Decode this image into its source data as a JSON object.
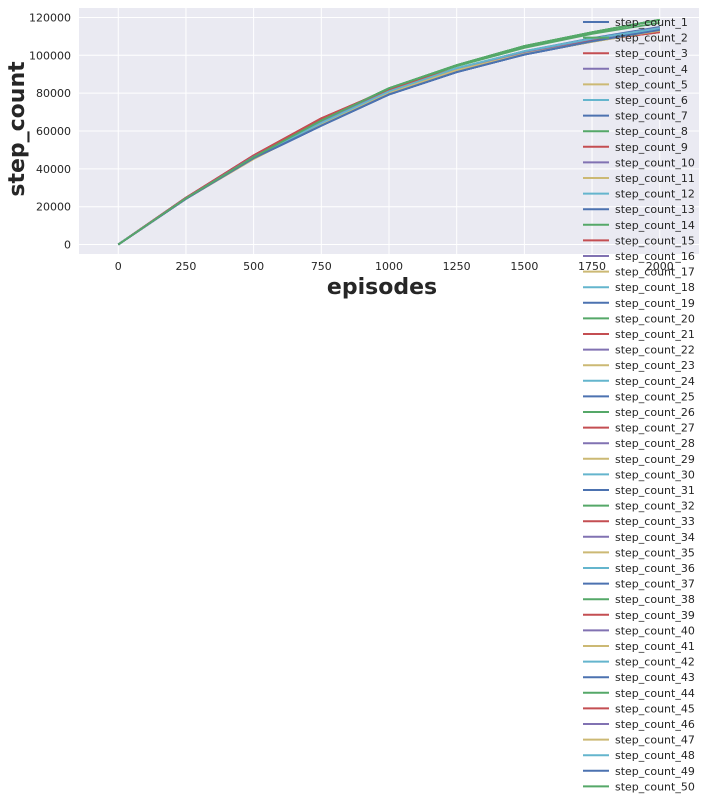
{
  "chart_data": {
    "type": "line",
    "xlabel": "episodes",
    "ylabel": "step_count",
    "xlim": [
      -145,
      2145
    ],
    "ylim": [
      -5000,
      125000
    ],
    "xticks": [
      0,
      250,
      500,
      750,
      1000,
      1250,
      1500,
      1750,
      2000
    ],
    "yticks": [
      0,
      20000,
      40000,
      60000,
      80000,
      100000,
      120000
    ],
    "grid": true,
    "legend_position": "right, overflowing below the axes",
    "background_color": "#eaeaf2",
    "grid_color": "#ffffff",
    "palette": [
      "#4c72b0",
      "#55a868",
      "#c44e52",
      "#8172b2",
      "#ccb974",
      "#64b5cd"
    ],
    "x": [
      0,
      250,
      500,
      750,
      1000,
      1250,
      1500,
      1750,
      2000
    ],
    "series": [
      {
        "name": "step_count_1",
        "color": "#4c72b0",
        "values": [
          0,
          24800,
          46500,
          64300,
          80800,
          93000,
          102200,
          109100,
          115000
        ]
      },
      {
        "name": "step_count_2",
        "color": "#55a868",
        "values": [
          0,
          24700,
          46800,
          65400,
          82300,
          94300,
          103900,
          111300,
          117200
        ]
      },
      {
        "name": "step_count_3",
        "color": "#c44e52",
        "values": [
          0,
          24600,
          47000,
          66100,
          82200,
          93100,
          101900,
          108100,
          112800
        ]
      },
      {
        "name": "step_count_4",
        "color": "#8172b2",
        "values": [
          0,
          24500,
          46300,
          64600,
          80900,
          92600,
          101600,
          108600,
          114400
        ]
      },
      {
        "name": "step_count_5",
        "color": "#ccb974",
        "values": [
          0,
          24200,
          45200,
          63600,
          80100,
          92100,
          100700,
          107200,
          112900
        ]
      },
      {
        "name": "step_count_6",
        "color": "#64b5cd",
        "values": [
          0,
          24400,
          45800,
          64200,
          80900,
          93100,
          102000,
          108700,
          114200
        ]
      },
      {
        "name": "step_count_7",
        "color": "#4c72b0",
        "values": [
          0,
          24100,
          45500,
          62800,
          79300,
          91100,
          100400,
          107300,
          113300
        ]
      },
      {
        "name": "step_count_8",
        "color": "#55a868",
        "values": [
          0,
          24400,
          46300,
          65600,
          82600,
          94800,
          104900,
          112200,
          118800
        ]
      },
      {
        "name": "step_count_9",
        "color": "#c44e52",
        "values": [
          0,
          24700,
          47100,
          66700,
          82000,
          93000,
          101700,
          107700,
          112300
        ]
      },
      {
        "name": "step_count_10",
        "color": "#8172b2",
        "values": [
          0,
          24400,
          46400,
          64700,
          81000,
          92700,
          101700,
          108600,
          114500
        ]
      },
      {
        "name": "step_count_11",
        "color": "#ccb974",
        "values": [
          0,
          24200,
          45300,
          63700,
          80200,
          92200,
          100800,
          107300,
          113000
        ]
      },
      {
        "name": "step_count_12",
        "color": "#64b5cd",
        "values": [
          0,
          24400,
          45900,
          64300,
          81000,
          93200,
          102100,
          108800,
          114300
        ]
      },
      {
        "name": "step_count_13",
        "color": "#4c72b0",
        "values": [
          0,
          24100,
          45600,
          62900,
          79400,
          91200,
          100500,
          107400,
          113400
        ]
      },
      {
        "name": "step_count_14",
        "color": "#55a868",
        "values": [
          0,
          24400,
          46200,
          65500,
          82500,
          94700,
          104800,
          112100,
          118600
        ]
      },
      {
        "name": "step_count_15",
        "color": "#c44e52",
        "values": [
          0,
          24600,
          47000,
          66500,
          81900,
          92900,
          101500,
          107600,
          112200
        ]
      },
      {
        "name": "step_count_16",
        "color": "#8172b2",
        "values": [
          0,
          24500,
          46300,
          64600,
          80900,
          92600,
          101600,
          108600,
          114400
        ]
      },
      {
        "name": "step_count_17",
        "color": "#ccb974",
        "values": [
          0,
          24200,
          45200,
          63600,
          80100,
          92100,
          100700,
          107200,
          112900
        ]
      },
      {
        "name": "step_count_18",
        "color": "#64b5cd",
        "values": [
          0,
          24400,
          45800,
          64200,
          80900,
          93100,
          102000,
          108700,
          114200
        ]
      },
      {
        "name": "step_count_19",
        "color": "#4c72b0",
        "values": [
          0,
          24100,
          45500,
          62800,
          79300,
          91100,
          100400,
          107300,
          113300
        ]
      },
      {
        "name": "step_count_20",
        "color": "#55a868",
        "values": [
          0,
          24400,
          46300,
          65600,
          82600,
          94800,
          104900,
          112200,
          118800
        ]
      },
      {
        "name": "step_count_21",
        "color": "#c44e52",
        "values": [
          0,
          24700,
          47100,
          66700,
          82000,
          93000,
          101700,
          107700,
          112300
        ]
      },
      {
        "name": "step_count_22",
        "color": "#8172b2",
        "values": [
          0,
          24400,
          46400,
          64700,
          81000,
          92700,
          101700,
          108600,
          114500
        ]
      },
      {
        "name": "step_count_23",
        "color": "#ccb974",
        "values": [
          0,
          24200,
          45300,
          63700,
          80200,
          92200,
          100800,
          107300,
          113000
        ]
      },
      {
        "name": "step_count_24",
        "color": "#64b5cd",
        "values": [
          0,
          24400,
          45900,
          64300,
          81000,
          93200,
          102100,
          108800,
          114300
        ]
      },
      {
        "name": "step_count_25",
        "color": "#4c72b0",
        "values": [
          0,
          24100,
          45600,
          62900,
          79400,
          91200,
          100500,
          107400,
          113400
        ]
      },
      {
        "name": "step_count_26",
        "color": "#55a868",
        "values": [
          0,
          24400,
          46200,
          65500,
          82500,
          94700,
          104800,
          112100,
          118600
        ]
      },
      {
        "name": "step_count_27",
        "color": "#c44e52",
        "values": [
          0,
          24600,
          47000,
          66500,
          81900,
          92900,
          101500,
          107600,
          112200
        ]
      },
      {
        "name": "step_count_28",
        "color": "#8172b2",
        "values": [
          0,
          24500,
          46300,
          64600,
          80900,
          92600,
          101600,
          108600,
          114400
        ]
      },
      {
        "name": "step_count_29",
        "color": "#ccb974",
        "values": [
          0,
          24200,
          45200,
          63600,
          80100,
          92100,
          100700,
          107200,
          112900
        ]
      },
      {
        "name": "step_count_30",
        "color": "#64b5cd",
        "values": [
          0,
          24400,
          45800,
          64200,
          80900,
          93100,
          102000,
          108700,
          114200
        ]
      },
      {
        "name": "step_count_31",
        "color": "#4c72b0",
        "values": [
          0,
          24100,
          45500,
          62800,
          79300,
          91100,
          100400,
          107300,
          113300
        ]
      },
      {
        "name": "step_count_32",
        "color": "#55a868",
        "values": [
          0,
          24400,
          46300,
          65600,
          82600,
          94800,
          104900,
          112200,
          118800
        ]
      },
      {
        "name": "step_count_33",
        "color": "#c44e52",
        "values": [
          0,
          24700,
          47100,
          66700,
          82000,
          93000,
          101700,
          107700,
          112300
        ]
      },
      {
        "name": "step_count_34",
        "color": "#8172b2",
        "values": [
          0,
          24400,
          46400,
          64700,
          81000,
          92700,
          101700,
          108600,
          114500
        ]
      },
      {
        "name": "step_count_35",
        "color": "#ccb974",
        "values": [
          0,
          24200,
          45300,
          63700,
          80200,
          92200,
          100800,
          107300,
          113000
        ]
      },
      {
        "name": "step_count_36",
        "color": "#64b5cd",
        "values": [
          0,
          24400,
          45900,
          64300,
          81000,
          93200,
          102100,
          108800,
          114300
        ]
      },
      {
        "name": "step_count_37",
        "color": "#4c72b0",
        "values": [
          0,
          24100,
          45600,
          62900,
          79400,
          91200,
          100500,
          107400,
          113400
        ]
      },
      {
        "name": "step_count_38",
        "color": "#55a868",
        "values": [
          0,
          24400,
          46200,
          65500,
          82500,
          94700,
          104800,
          112100,
          118600
        ]
      },
      {
        "name": "step_count_39",
        "color": "#c44e52",
        "values": [
          0,
          24600,
          47000,
          66500,
          81900,
          92900,
          101500,
          107600,
          112200
        ]
      },
      {
        "name": "step_count_40",
        "color": "#8172b2",
        "values": [
          0,
          24500,
          46300,
          64600,
          80900,
          92600,
          101600,
          108600,
          114400
        ]
      },
      {
        "name": "step_count_41",
        "color": "#ccb974",
        "values": [
          0,
          24200,
          45200,
          63600,
          80100,
          92100,
          100700,
          107200,
          112900
        ]
      },
      {
        "name": "step_count_42",
        "color": "#64b5cd",
        "values": [
          0,
          24400,
          45800,
          64200,
          80900,
          93100,
          102000,
          108700,
          114200
        ]
      },
      {
        "name": "step_count_43",
        "color": "#4c72b0",
        "values": [
          0,
          24100,
          45500,
          62800,
          79300,
          91100,
          100400,
          107300,
          113300
        ]
      },
      {
        "name": "step_count_44",
        "color": "#55a868",
        "values": [
          0,
          24400,
          46300,
          65600,
          82600,
          94800,
          104900,
          112200,
          118800
        ]
      },
      {
        "name": "step_count_45",
        "color": "#c44e52",
        "values": [
          0,
          24700,
          47100,
          66700,
          82000,
          93000,
          101700,
          107700,
          112300
        ]
      },
      {
        "name": "step_count_46",
        "color": "#8172b2",
        "values": [
          0,
          24400,
          46400,
          64700,
          81000,
          92700,
          101700,
          108600,
          114500
        ]
      },
      {
        "name": "step_count_47",
        "color": "#ccb974",
        "values": [
          0,
          24200,
          45300,
          63700,
          80200,
          92200,
          100800,
          107300,
          113000
        ]
      },
      {
        "name": "step_count_48",
        "color": "#64b5cd",
        "values": [
          0,
          24400,
          45900,
          64300,
          81000,
          93200,
          102100,
          108800,
          114300
        ]
      },
      {
        "name": "step_count_49",
        "color": "#4c72b0",
        "values": [
          0,
          24100,
          45600,
          62900,
          79400,
          91200,
          100500,
          107400,
          113400
        ]
      },
      {
        "name": "step_count_50",
        "color": "#55a868",
        "values": [
          0,
          24400,
          46200,
          65500,
          82500,
          94700,
          104800,
          112100,
          118600
        ]
      }
    ]
  }
}
